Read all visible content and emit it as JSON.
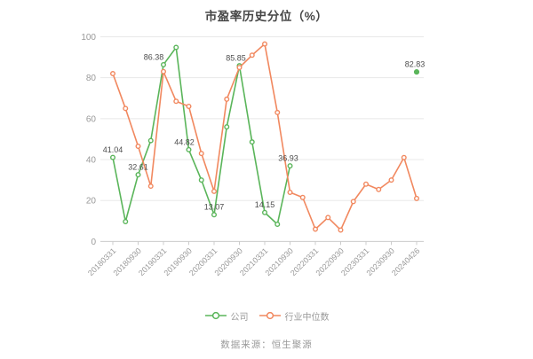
{
  "chart_data": {
    "type": "line",
    "title": "市盈率历史分位（%）",
    "x": [
      "20180331",
      "20180630",
      "20180930",
      "20181231",
      "20190331",
      "20190630",
      "20190930",
      "20191231",
      "20200331",
      "20200630",
      "20200930",
      "20201231",
      "20210331",
      "20210630",
      "20210930",
      "20211231",
      "20220331",
      "20220630",
      "20220930",
      "20221231",
      "20230331",
      "20230630",
      "20230930",
      "20231231",
      "20240426"
    ],
    "x_axis_labels": [
      "20180331",
      "20180930",
      "20190331",
      "20190930",
      "20200331",
      "20200930",
      "20210331",
      "20210930",
      "20220331",
      "20220930",
      "20230331",
      "20230930",
      "20240426"
    ],
    "y_ticks": [
      0,
      20,
      40,
      60,
      80,
      100
    ],
    "ylim": [
      0,
      100
    ],
    "grid": true,
    "legend_position": "bottom-center",
    "series": [
      {
        "name": "公司",
        "color": "#5ab55a",
        "values": [
          41.04,
          9.7,
          32.61,
          49.3,
          86.38,
          94.8,
          44.82,
          30,
          13.07,
          56,
          85.85,
          48.6,
          14.15,
          8.4,
          36.93,
          null,
          null,
          null,
          null,
          null,
          null,
          null,
          null,
          null,
          82.83
        ]
      },
      {
        "name": "行业中位数",
        "color": "#f1885f",
        "values": [
          82,
          65,
          46.5,
          27,
          83,
          68.5,
          66,
          43,
          24.5,
          69.5,
          85,
          91,
          96.5,
          63,
          24,
          21.5,
          6,
          11.7,
          5.6,
          19.5,
          28,
          25.4,
          30,
          41,
          21
        ]
      }
    ],
    "point_labels": [
      {
        "index": 0,
        "text": "41.04",
        "dx": 0
      },
      {
        "index": 2,
        "text": "32.61",
        "dx": 0
      },
      {
        "index": 4,
        "text": "86.38",
        "dx": -11
      },
      {
        "index": 6,
        "text": "44.82",
        "dx": -5
      },
      {
        "index": 8,
        "text": "13.07",
        "dx": 0
      },
      {
        "index": 10,
        "text": "85.85",
        "dx": -4
      },
      {
        "index": 12,
        "text": "14.15",
        "dx": 0
      },
      {
        "index": 14,
        "text": "36.93",
        "dx": -2
      },
      {
        "index": 24,
        "text": "82.83",
        "dx": -2
      }
    ]
  },
  "legend": {
    "items": [
      {
        "label": "公司",
        "color": "#5ab55a"
      },
      {
        "label": "行业中位数",
        "color": "#f1885f"
      }
    ]
  },
  "source_text": "数据来源：恒生聚源",
  "colors": {
    "company": "#5ab55a",
    "industry_median": "#f1885f",
    "point_label": "#4d4d4d",
    "axis_text": "#999999",
    "grid_line": "#e8e8e8",
    "axis_line": "#cccccc",
    "title_text": "#464646",
    "source_text": "#9a9a9a",
    "background": "#ffffff"
  }
}
